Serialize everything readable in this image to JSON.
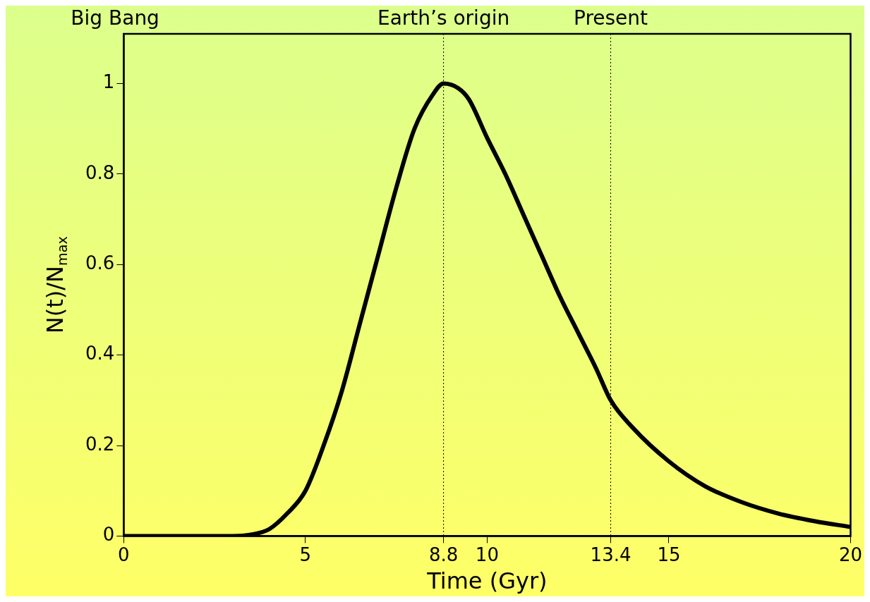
{
  "chart_data": {
    "type": "line",
    "xlabel": "Time (Gyr)",
    "ylabel": "N(t)/N$_{max}$",
    "xlim": [
      0,
      20
    ],
    "xticks": [
      0,
      5,
      8.8,
      10,
      13.4,
      15,
      20
    ],
    "ylim": [
      0,
      1.11
    ],
    "yticks": [
      0,
      0.2,
      0.4,
      0.6,
      0.8,
      1
    ],
    "grid": false,
    "legend": false,
    "marker": "none",
    "line_style": "solid",
    "annotations": [
      "Big Bang"
    ],
    "ref_lines": [
      {
        "axis": "x",
        "value": 8.8,
        "label": "Earth’s origin",
        "line_style": "dotted"
      },
      {
        "axis": "x",
        "value": 13.4,
        "label": "Present",
        "line_style": "dotted"
      }
    ],
    "series": [
      {
        "color": "#000000",
        "x": [
          0,
          3,
          3.5,
          4,
          4.5,
          5,
          5.5,
          6,
          6.5,
          7,
          7.5,
          8,
          8.5,
          8.8,
          9.2,
          9.5,
          10,
          10.5,
          11,
          11.5,
          12,
          12.5,
          13,
          13.4,
          14,
          15,
          16,
          17,
          18,
          19,
          20
        ],
        "values": [
          0,
          0,
          0.003,
          0.015,
          0.05,
          0.1,
          0.2,
          0.32,
          0.47,
          0.62,
          0.77,
          0.9,
          0.975,
          1,
          0.99,
          0.965,
          0.88,
          0.8,
          0.71,
          0.62,
          0.53,
          0.45,
          0.37,
          0.3,
          0.24,
          0.165,
          0.11,
          0.075,
          0.05,
          0.033,
          0.02
        ]
      }
    ]
  }
}
